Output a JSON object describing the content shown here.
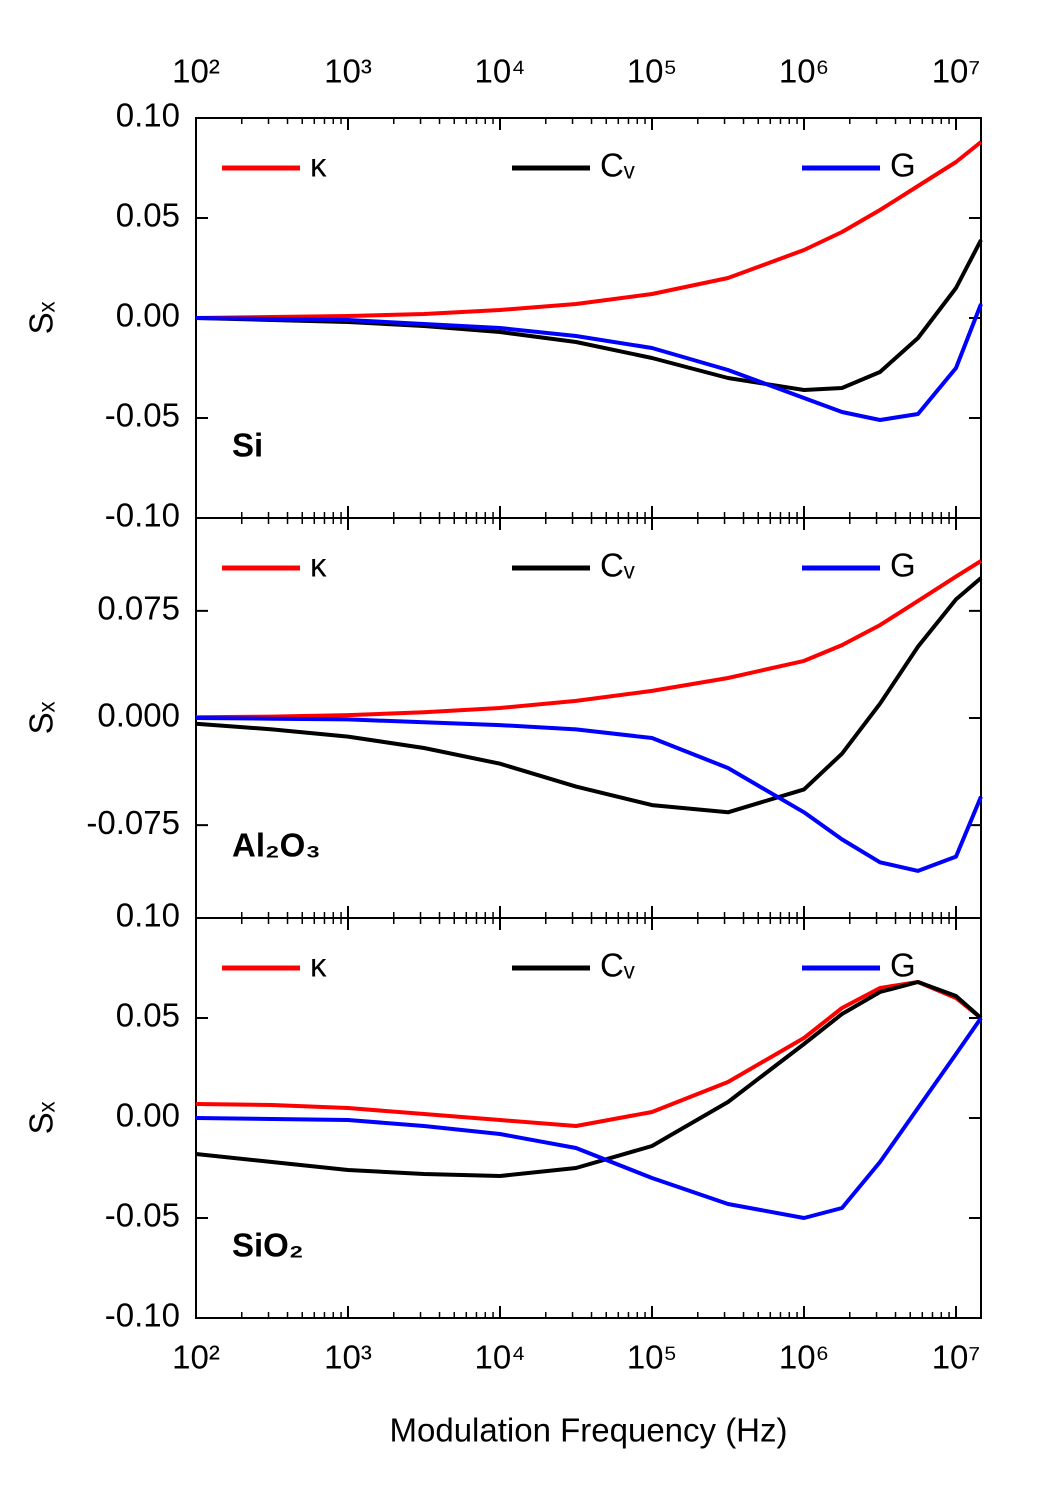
{
  "chart_data": [
    {
      "type": "line",
      "annotation": "Si",
      "y_label": "Sₓ",
      "x": [
        100,
        316.2,
        1000,
        3162,
        10000,
        31620,
        100000,
        316200,
        1000000,
        1778000,
        3162000,
        5623000,
        10000000,
        14600000
      ],
      "series": [
        {
          "name": "κ",
          "color": "#ff0000",
          "values": [
            0,
            0.0005,
            0.001,
            0.002,
            0.004,
            0.007,
            0.012,
            0.02,
            0.034,
            0.043,
            0.054,
            0.066,
            0.078,
            0.088
          ]
        },
        {
          "name": "Cᵥ",
          "color": "#000000",
          "values": [
            0,
            -0.001,
            -0.002,
            -0.004,
            -0.007,
            -0.012,
            -0.02,
            -0.03,
            -0.036,
            -0.035,
            -0.027,
            -0.01,
            0.015,
            0.039
          ]
        },
        {
          "name": "G",
          "color": "#0000ff",
          "values": [
            0,
            -0.0005,
            -0.001,
            -0.003,
            -0.005,
            -0.009,
            -0.015,
            -0.026,
            -0.04,
            -0.047,
            -0.051,
            -0.048,
            -0.025,
            0.007
          ]
        }
      ],
      "xlim": [
        100,
        14600000
      ],
      "log_x": true,
      "xticks": [
        {
          "value": 100,
          "label": "10²"
        },
        {
          "value": 1000,
          "label": "10³"
        },
        {
          "value": 10000,
          "label": "10⁴"
        },
        {
          "value": 100000,
          "label": "10⁵"
        },
        {
          "value": 1000000,
          "label": "10⁶"
        },
        {
          "value": 10000000,
          "label": "10⁷"
        }
      ],
      "ylim": [
        -0.1,
        0.1
      ],
      "yticks": [
        {
          "value": -0.1,
          "label": "-0.10"
        },
        {
          "value": -0.05,
          "label": "-0.05"
        },
        {
          "value": 0,
          "label": "0.00"
        },
        {
          "value": 0.05,
          "label": "0.05"
        },
        {
          "value": 0.1,
          "label": "0.10"
        }
      ]
    },
    {
      "type": "line",
      "annotation": "Al₂O₃",
      "y_label": "Sₓ",
      "x": [
        100,
        316.2,
        1000,
        3162,
        10000,
        31620,
        100000,
        316200,
        1000000,
        1778000,
        3162000,
        5623000,
        10000000,
        14600000
      ],
      "series": [
        {
          "name": "κ",
          "color": "#ff0000",
          "values": [
            0.0005,
            0.001,
            0.002,
            0.004,
            0.007,
            0.012,
            0.019,
            0.028,
            0.04,
            0.051,
            0.065,
            0.082,
            0.099,
            0.11
          ]
        },
        {
          "name": "Cᵥ",
          "color": "#000000",
          "values": [
            -0.004,
            -0.008,
            -0.013,
            -0.021,
            -0.032,
            -0.048,
            -0.061,
            -0.066,
            -0.05,
            -0.025,
            0.01,
            0.05,
            0.083,
            0.098
          ]
        },
        {
          "name": "G",
          "color": "#0000ff",
          "values": [
            0,
            -0.0005,
            -0.001,
            -0.003,
            -0.005,
            -0.008,
            -0.014,
            -0.035,
            -0.066,
            -0.085,
            -0.101,
            -0.107,
            -0.097,
            -0.055
          ]
        }
      ],
      "xlim": [
        100,
        14600000
      ],
      "log_x": true,
      "xticks": [
        {
          "value": 100,
          "label": "10²"
        },
        {
          "value": 1000,
          "label": "10³"
        },
        {
          "value": 10000,
          "label": "10⁴"
        },
        {
          "value": 100000,
          "label": "10⁵"
        },
        {
          "value": 1000000,
          "label": "10⁶"
        },
        {
          "value": 10000000,
          "label": "10⁷"
        }
      ],
      "ylim": [
        -0.14,
        0.14
      ],
      "yticks": [
        {
          "value": -0.075,
          "label": "-0.075"
        },
        {
          "value": 0,
          "label": "0.000"
        },
        {
          "value": 0.075,
          "label": "0.075"
        }
      ]
    },
    {
      "type": "line",
      "annotation": "SiO₂",
      "y_label": "Sₓ",
      "x_label": "Modulation Frequency (Hz)",
      "x": [
        100,
        316.2,
        1000,
        3162,
        10000,
        31620,
        100000,
        316200,
        1000000,
        1778000,
        3162000,
        5623000,
        10000000,
        14600000
      ],
      "series": [
        {
          "name": "κ",
          "color": "#ff0000",
          "values": [
            0.007,
            0.0065,
            0.005,
            0.002,
            -0.001,
            -0.004,
            0.003,
            0.018,
            0.04,
            0.055,
            0.065,
            0.068,
            0.06,
            0.05
          ]
        },
        {
          "name": "Cᵥ",
          "color": "#000000",
          "values": [
            -0.018,
            -0.022,
            -0.026,
            -0.028,
            -0.029,
            -0.025,
            -0.014,
            0.008,
            0.037,
            0.052,
            0.063,
            0.068,
            0.061,
            0.05
          ]
        },
        {
          "name": "G",
          "color": "#0000ff",
          "values": [
            0,
            -0.0005,
            -0.001,
            -0.004,
            -0.008,
            -0.015,
            -0.03,
            -0.043,
            -0.05,
            -0.045,
            -0.022,
            0.005,
            0.032,
            0.05
          ]
        }
      ],
      "xlim": [
        100,
        14600000
      ],
      "log_x": true,
      "xticks": [
        {
          "value": 100,
          "label": "10²"
        },
        {
          "value": 1000,
          "label": "10³"
        },
        {
          "value": 10000,
          "label": "10⁴"
        },
        {
          "value": 100000,
          "label": "10⁵"
        },
        {
          "value": 1000000,
          "label": "10⁶"
        },
        {
          "value": 10000000,
          "label": "10⁷"
        }
      ],
      "ylim": [
        -0.1,
        0.1
      ],
      "yticks": [
        {
          "value": -0.1,
          "label": "-0.10"
        },
        {
          "value": -0.05,
          "label": "-0.05"
        },
        {
          "value": 0,
          "label": "0.00"
        },
        {
          "value": 0.05,
          "label": "0.05"
        },
        {
          "value": 0.1,
          "label": "0.10"
        }
      ]
    }
  ]
}
